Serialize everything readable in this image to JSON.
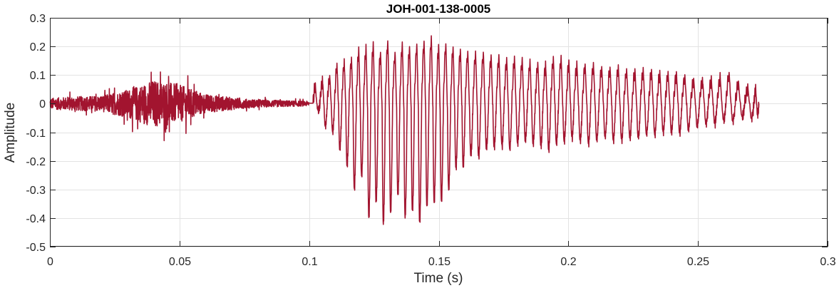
{
  "chart_data": {
    "type": "line",
    "title": "JOH-001-138-0005",
    "xlabel": "Time (s)",
    "ylabel": "Amplitude",
    "xlim": [
      0,
      0.3
    ],
    "ylim": [
      -0.5,
      0.3
    ],
    "grid": true,
    "xticks": [
      0,
      0.05,
      0.1,
      0.15,
      0.2,
      0.25,
      0.3
    ],
    "xtick_labels": [
      "0",
      "0.05",
      "0.1",
      "0.15",
      "0.2",
      "0.25",
      "0.3"
    ],
    "yticks": [
      -0.5,
      -0.4,
      -0.3,
      -0.2,
      -0.1,
      0,
      0.1,
      0.2,
      0.3
    ],
    "ytick_labels": [
      "-0.5",
      "-0.4",
      "-0.3",
      "-0.2",
      "-0.1",
      "0",
      "0.1",
      "0.2",
      "0.3"
    ],
    "series": [
      {
        "color": "#a2142f",
        "segments": [
          {
            "kind": "noise",
            "t_start": 0.0,
            "t_end": 0.1,
            "envelope": [
              [
                0.0,
                0.035
              ],
              [
                0.01,
                0.045
              ],
              [
                0.02,
                0.05
              ],
              [
                0.025,
                0.07
              ],
              [
                0.03,
                0.09
              ],
              [
                0.035,
                0.12
              ],
              [
                0.04,
                0.15
              ],
              [
                0.045,
                0.14
              ],
              [
                0.05,
                0.12
              ],
              [
                0.055,
                0.09
              ],
              [
                0.06,
                0.06
              ],
              [
                0.065,
                0.05
              ],
              [
                0.07,
                0.04
              ],
              [
                0.075,
                0.03
              ],
              [
                0.08,
                0.025
              ],
              [
                0.09,
                0.02
              ],
              [
                0.1,
                0.015
              ]
            ]
          },
          {
            "kind": "periodic",
            "t_start": 0.1,
            "t_end": 0.2735,
            "cycle_peaks": [
              [
                0.1015,
                0.06,
                -0.02
              ],
              [
                0.1042,
                0.08,
                -0.08
              ],
              [
                0.107,
                0.09,
                -0.1
              ],
              [
                0.1098,
                0.13,
                -0.16
              ],
              [
                0.1126,
                0.14,
                -0.22
              ],
              [
                0.1154,
                0.15,
                -0.3
              ],
              [
                0.1182,
                0.18,
                -0.25
              ],
              [
                0.121,
                0.19,
                -0.4
              ],
              [
                0.1238,
                0.2,
                -0.35
              ],
              [
                0.1266,
                0.17,
                -0.42
              ],
              [
                0.1294,
                0.21,
                -0.38
              ],
              [
                0.1322,
                0.17,
                -0.32
              ],
              [
                0.135,
                0.2,
                -0.4
              ],
              [
                0.1378,
                0.19,
                -0.38
              ],
              [
                0.1406,
                0.2,
                -0.42
              ],
              [
                0.1434,
                0.21,
                -0.36
              ],
              [
                0.1462,
                0.22,
                -0.35
              ],
              [
                0.149,
                0.19,
                -0.34
              ],
              [
                0.1518,
                0.2,
                -0.3
              ],
              [
                0.1546,
                0.19,
                -0.23
              ],
              [
                0.1574,
                0.18,
                -0.22
              ],
              [
                0.1602,
                0.17,
                -0.18
              ],
              [
                0.1632,
                0.17,
                -0.19
              ],
              [
                0.1662,
                0.17,
                -0.16
              ],
              [
                0.1692,
                0.16,
                -0.15
              ],
              [
                0.1722,
                0.16,
                -0.15
              ],
              [
                0.1752,
                0.15,
                -0.16
              ],
              [
                0.1782,
                0.15,
                -0.14
              ],
              [
                0.1812,
                0.15,
                -0.13
              ],
              [
                0.1842,
                0.14,
                -0.14
              ],
              [
                0.1872,
                0.13,
                -0.15
              ],
              [
                0.1902,
                0.13,
                -0.16
              ],
              [
                0.1932,
                0.15,
                -0.14
              ],
              [
                0.1962,
                0.15,
                -0.13
              ],
              [
                0.1992,
                0.14,
                -0.12
              ],
              [
                0.2022,
                0.13,
                -0.13
              ],
              [
                0.2054,
                0.13,
                -0.14
              ],
              [
                0.2086,
                0.13,
                -0.13
              ],
              [
                0.2118,
                0.12,
                -0.12
              ],
              [
                0.215,
                0.12,
                -0.13
              ],
              [
                0.2182,
                0.12,
                -0.13
              ],
              [
                0.2214,
                0.11,
                -0.12
              ],
              [
                0.2246,
                0.11,
                -0.12
              ],
              [
                0.2278,
                0.11,
                -0.11
              ],
              [
                0.231,
                0.11,
                -0.11
              ],
              [
                0.2342,
                0.1,
                -0.1
              ],
              [
                0.2374,
                0.1,
                -0.1
              ],
              [
                0.2406,
                0.1,
                -0.1
              ],
              [
                0.2438,
                0.09,
                -0.09
              ],
              [
                0.2472,
                0.08,
                -0.08
              ],
              [
                0.2506,
                0.08,
                -0.07
              ],
              [
                0.254,
                0.08,
                -0.07
              ],
              [
                0.2574,
                0.09,
                -0.06
              ],
              [
                0.2608,
                0.1,
                -0.06
              ],
              [
                0.2644,
                0.07,
                -0.05
              ],
              [
                0.268,
                0.05,
                -0.05
              ],
              [
                0.2716,
                0.05,
                -0.04
              ]
            ]
          }
        ]
      }
    ]
  }
}
